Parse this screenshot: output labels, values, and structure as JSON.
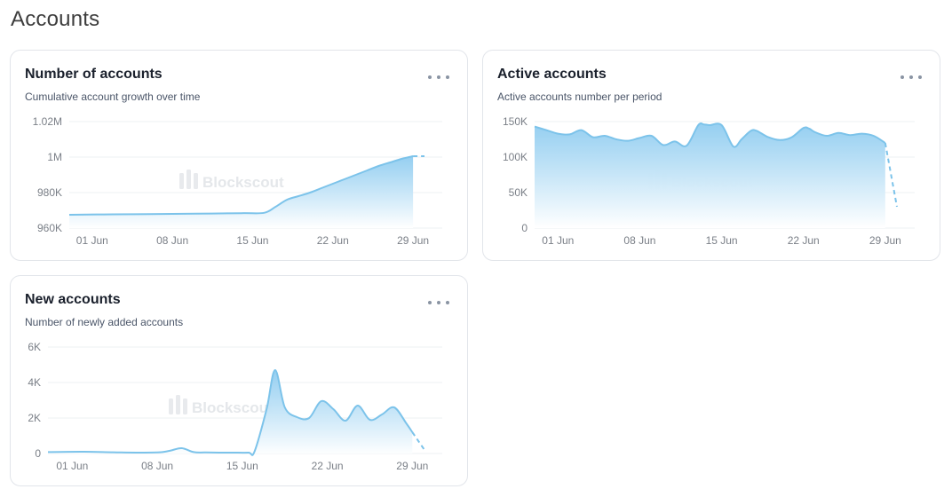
{
  "page": {
    "title": "Accounts"
  },
  "watermark": "Blockscout",
  "colors": {
    "line": "#7cc3ea",
    "fill_top": "#8fccf0",
    "fill_bottom": "#ffffff",
    "grid": "#eef0f3",
    "tick": "#7a7f87"
  },
  "cards": [
    {
      "title": "Number of accounts",
      "subtitle": "Cumulative account growth over time",
      "menu_icon": "ellipsis-icon"
    },
    {
      "title": "Active accounts",
      "subtitle": "Active accounts number per period",
      "menu_icon": "ellipsis-icon"
    },
    {
      "title": "New accounts",
      "subtitle": "Number of newly added accounts",
      "menu_icon": "ellipsis-icon"
    }
  ],
  "chart_data": [
    {
      "type": "area",
      "title": "Number of accounts",
      "x_ticks": [
        "01 Jun",
        "08 Jun",
        "15 Jun",
        "22 Jun",
        "29 Jun"
      ],
      "x_tick_days": [
        1,
        8,
        15,
        22,
        29
      ],
      "y_ticks": [
        "960K",
        "980K",
        "1M",
        "1.02M"
      ],
      "y_tick_values": [
        960000,
        980000,
        1000000,
        1020000
      ],
      "ylim": [
        960000,
        1020000
      ],
      "xlim": [
        -1,
        30
      ],
      "grid": true,
      "x": [
        -1,
        2,
        6,
        10,
        14,
        16,
        17,
        18,
        19,
        20,
        21,
        22,
        23,
        24,
        25,
        26,
        27,
        28,
        29
      ],
      "y": [
        967500,
        967700,
        967900,
        968100,
        968400,
        968600,
        972000,
        976000,
        978000,
        980000,
        982500,
        985000,
        987500,
        990000,
        992500,
        995000,
        997000,
        999000,
        1000500
      ],
      "dashed_tail": {
        "x": [
          29,
          30
        ],
        "y": [
          1000500,
          1000500
        ]
      }
    },
    {
      "type": "area",
      "title": "Active accounts",
      "x_ticks": [
        "01 Jun",
        "08 Jun",
        "15 Jun",
        "22 Jun",
        "29 Jun"
      ],
      "x_tick_days": [
        1,
        8,
        15,
        22,
        29
      ],
      "y_ticks": [
        "0",
        "50K",
        "100K",
        "150K"
      ],
      "y_tick_values": [
        0,
        50000,
        100000,
        150000
      ],
      "ylim": [
        0,
        150000
      ],
      "xlim": [
        -1,
        30
      ],
      "grid": true,
      "x": [
        -1,
        0,
        1,
        2,
        3,
        4,
        5,
        6,
        7,
        8,
        9,
        10,
        11,
        12,
        13,
        13.5,
        14,
        15,
        16,
        16.7,
        17.5,
        18,
        19,
        20,
        21,
        22,
        22.5,
        23,
        24,
        25,
        26,
        27,
        28,
        29
      ],
      "y": [
        143000,
        138000,
        133000,
        132000,
        138000,
        128000,
        130000,
        125000,
        123000,
        127000,
        130000,
        117000,
        122000,
        116000,
        145000,
        146000,
        145000,
        145000,
        115000,
        125000,
        137000,
        137000,
        128000,
        124000,
        128000,
        141000,
        140000,
        135000,
        130000,
        134000,
        131000,
        133000,
        130000,
        120000
      ],
      "dashed_tail": {
        "x": [
          29,
          30
        ],
        "y": [
          120000,
          30000
        ]
      }
    },
    {
      "type": "area",
      "title": "New accounts",
      "x_ticks": [
        "01 Jun",
        "08 Jun",
        "15 Jun",
        "22 Jun",
        "29 Jun"
      ],
      "x_tick_days": [
        1,
        8,
        15,
        22,
        29
      ],
      "y_ticks": [
        "0",
        "2K",
        "4K",
        "6K"
      ],
      "y_tick_values": [
        0,
        2000,
        4000,
        6000
      ],
      "ylim": [
        0,
        6000
      ],
      "xlim": [
        -1,
        30
      ],
      "grid": true,
      "x": [
        -1,
        2,
        5,
        8,
        9,
        10,
        11,
        12,
        14,
        15.5,
        16,
        17,
        17.7,
        18.5,
        19.5,
        20.5,
        21.5,
        22.5,
        23.5,
        24.5,
        25.5,
        26.5,
        27.5,
        28.5,
        29
      ],
      "y": [
        80,
        100,
        60,
        60,
        150,
        300,
        80,
        60,
        50,
        50,
        100,
        2500,
        4700,
        2600,
        2050,
        2000,
        2950,
        2500,
        1850,
        2700,
        1900,
        2200,
        2600,
        1700,
        1200
      ],
      "dashed_tail": {
        "x": [
          29,
          30
        ],
        "y": [
          1200,
          200
        ]
      }
    }
  ]
}
